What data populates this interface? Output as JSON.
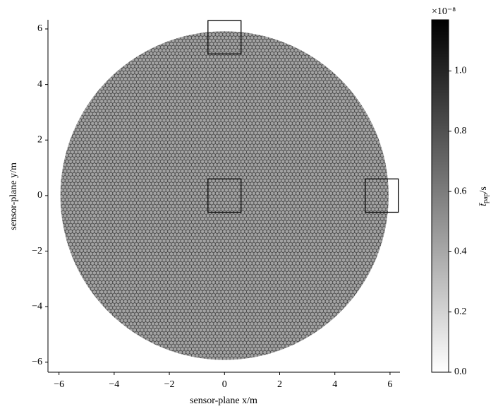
{
  "chart_data": {
    "type": "sensor-disk",
    "xlabel": "sensor-plane x/m",
    "ylabel": "sensor-plane y/m",
    "xlim": [
      -6.4,
      6.36
    ],
    "ylim": [
      -6.36,
      6.33
    ],
    "xticks": [
      {
        "value": -6,
        "label": "−6"
      },
      {
        "value": -4,
        "label": "−4"
      },
      {
        "value": -2,
        "label": "−2"
      },
      0,
      2,
      4,
      6
    ],
    "yticks": [
      {
        "value": -6,
        "label": "−6"
      },
      {
        "value": -4,
        "label": "−4"
      },
      {
        "value": -2,
        "label": "−2"
      },
      0,
      2,
      4,
      6
    ],
    "disk": {
      "radius": 5.95,
      "value": 0.42
    },
    "boxes": [
      {
        "x": [
          -0.6,
          0.6
        ],
        "y": [
          -0.6,
          0.6
        ]
      },
      {
        "x": [
          5.1,
          6.3
        ],
        "y": [
          -0.6,
          0.6
        ]
      },
      {
        "x": [
          -0.6,
          0.6
        ],
        "y": [
          5.1,
          6.3
        ]
      }
    ],
    "colorbar": {
      "lim": [
        0,
        1.17
      ],
      "offset_label": "×10⁻⁸",
      "ticks": [
        {
          "value": 0,
          "label": "0.0"
        },
        {
          "value": 0.2,
          "label": "0.2"
        },
        {
          "value": 0.4,
          "label": "0.4"
        },
        {
          "value": 0.6,
          "label": "0.6"
        },
        {
          "value": 0.8,
          "label": "0.8"
        },
        {
          "value": 1,
          "label": "1.0"
        }
      ],
      "label": {
        "symbol": "t̄",
        "subscript": "pap",
        "unit": "/s"
      }
    }
  }
}
